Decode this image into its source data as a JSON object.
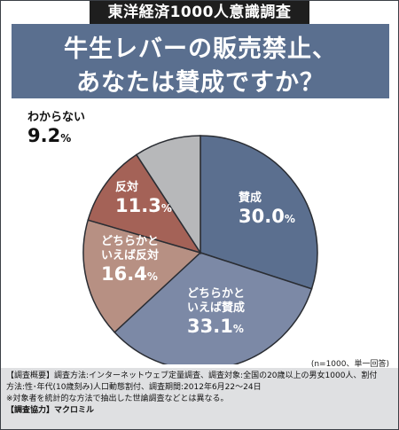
{
  "badge": "東洋経済1000人意識調査",
  "banner": {
    "line1": "牛生レバーの販売禁止、",
    "line2": "あなたは賛成ですか？"
  },
  "colors": {
    "banner": "#5a6f8f",
    "賛成": "#5b6f8f",
    "どちらかといえば賛成": "#7c89a6",
    "どちらかといえば反対": "#b79083",
    "反対": "#a46257",
    "わからない": "#b7b8ba",
    "notes_bg": "#dfe0e2"
  },
  "chart_data": {
    "type": "pie",
    "unit": "%",
    "slices": [
      {
        "label": "賛成",
        "value": 30.0,
        "value_text": "30.0"
      },
      {
        "label": "どちらかといえば賛成",
        "value": 33.1,
        "value_text": "33.1"
      },
      {
        "label": "どちらかといえば反対",
        "value": 16.4,
        "value_text": "16.4"
      },
      {
        "label": "反対",
        "value": 11.3,
        "value_text": "11.3"
      },
      {
        "label": "わからない",
        "value": 9.2,
        "value_text": "9.2"
      }
    ]
  },
  "labels": {
    "s0": {
      "l1": "賛成",
      "l2": "",
      "value": "30.0",
      "unit": "%"
    },
    "s1": {
      "l1": "どちらかと",
      "l2": "いえば賛成",
      "value": "33.1",
      "unit": "%"
    },
    "s2": {
      "l1": "どちらかと",
      "l2": "いえば反対",
      "value": "16.4",
      "unit": "%"
    },
    "s3": {
      "l1": "反対",
      "l2": "",
      "value": "11.3",
      "unit": "%"
    },
    "s4": {
      "l1": "わからない",
      "l2": "",
      "value": "9.2",
      "unit": "%"
    }
  },
  "sample_note": "(n=1000、単一回答)",
  "notes": {
    "line1": "【調査概要】調査方法:インターネットウェブ定量調査、調査対象:全国の20歳以上の男女1000人、割付",
    "line2": "方法:性･年代(10歳刻み)人口動態割付、調査期間:2012年6月22〜24日",
    "line3": "※対象者を統計的な方法で抽出した世論調査などとは異なる。",
    "line4": "【調査協力】マクロミル"
  }
}
